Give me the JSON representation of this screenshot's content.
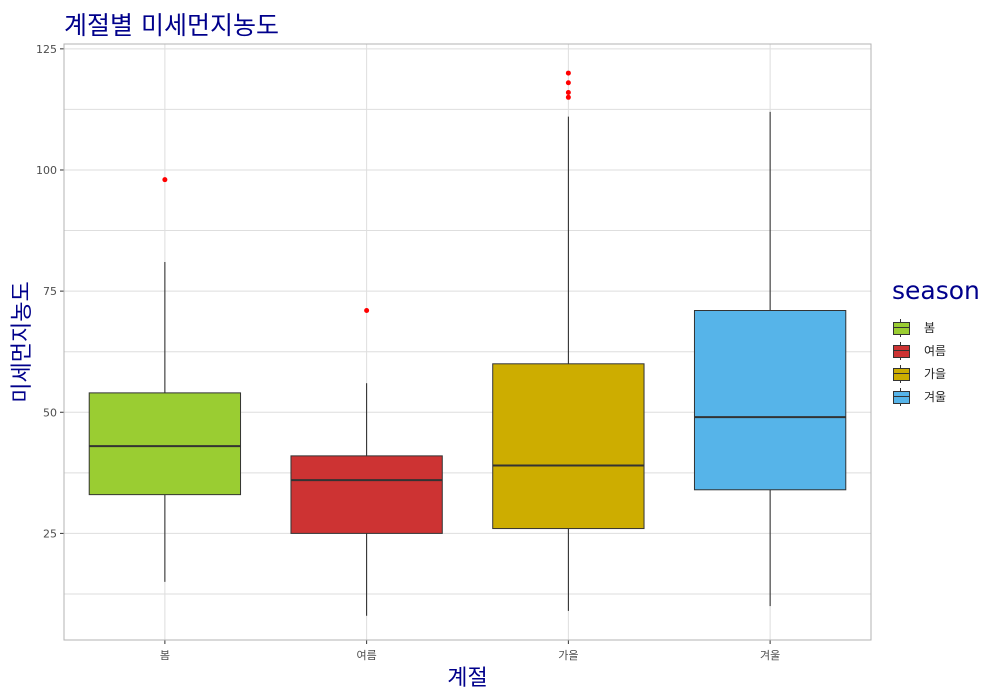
{
  "chart_data": {
    "type": "boxplot",
    "title": "계절별 미세먼지농도",
    "xlabel": "계절",
    "ylabel": "미세먼지농도",
    "ylim": [
      3,
      126
    ],
    "yticks": [
      25,
      50,
      75,
      100,
      125
    ],
    "categories": [
      "봄",
      "여름",
      "가을",
      "겨울"
    ],
    "boxes": [
      {
        "category": "봄",
        "whisker_low": 15,
        "q1": 33,
        "median": 43,
        "q3": 54,
        "whisker_high": 81,
        "outliers": [
          98
        ],
        "color": "#9ACD32"
      },
      {
        "category": "여름",
        "whisker_low": 8,
        "q1": 25,
        "median": 36,
        "q3": 41,
        "whisker_high": 56,
        "outliers": [
          71
        ],
        "color": "#CD3333"
      },
      {
        "category": "가을",
        "whisker_low": 9,
        "q1": 26,
        "median": 39,
        "q3": 60,
        "whisker_high": 111,
        "outliers": [
          115,
          116,
          118,
          120
        ],
        "color": "#CDAD00"
      },
      {
        "category": "겨울",
        "whisker_low": 10,
        "q1": 34,
        "median": 49,
        "q3": 71,
        "whisker_high": 112,
        "outliers": [],
        "color": "#56B4E9"
      }
    ],
    "outlier_color": "#FF0000",
    "grid": true,
    "legend": {
      "title": "season",
      "position": "right",
      "items": [
        "봄",
        "여름",
        "가을",
        "겨울"
      ]
    }
  }
}
